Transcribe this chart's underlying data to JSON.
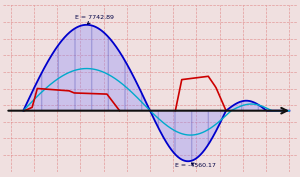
{
  "bg_color": "#f0e0e0",
  "grid_color": "#e08888",
  "blue_fill_color": "#8888ff",
  "blue_fill_alpha": 0.35,
  "blue_line_color": "#0000cc",
  "cyan_color": "#00aacc",
  "red_color": "#cc0000",
  "annotation_color": "#000044",
  "peak_label": "E = 7742.89",
  "trough_label": "E = -4560.17",
  "hatch_color": "#5555bb",
  "axis_color": "#111111",
  "xlim": [
    -0.8,
    10.8
  ],
  "ylim": [
    -5500,
    9500
  ]
}
